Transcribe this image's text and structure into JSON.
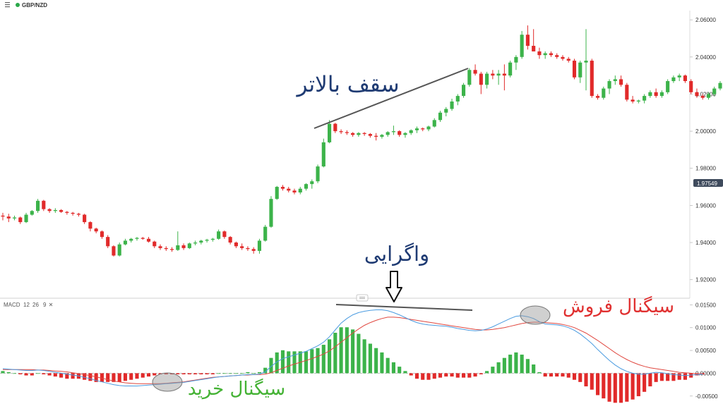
{
  "header": {
    "menu_icon": "menu-icon",
    "symbol": "GBP/NZD",
    "status_color": "#2aa84a"
  },
  "current_price": "1.97549",
  "macd": {
    "label": "MACD",
    "fast": "12",
    "slow": "26",
    "signal": "9",
    "close_icon": "close-icon"
  },
  "annotations": {
    "higher_high": "سقف بالاتر",
    "divergence": "واگرایی",
    "sell_signal": "سیگنال فروش",
    "buy_signal": "سیگنال خرید"
  },
  "colors": {
    "up": "#3cb34a",
    "down": "#e12a2a",
    "macd_line": "#4a9be0",
    "signal_line": "#e0473f",
    "trend_line": "#444444",
    "text_blue": "#1f3b73",
    "text_red": "#e03030",
    "text_green": "#44b234"
  },
  "chart_data": [
    {
      "type": "candlestick",
      "symbol": "GBP/NZD",
      "ylim": [
        1.91,
        2.065
      ],
      "y_ticks": [
        "2.06000",
        "2.04000",
        "2.02000",
        "2.00000",
        "1.98000",
        "1.96000",
        "1.94000",
        "1.92000"
      ],
      "last_price": 1.97549,
      "ohlc": [
        [
          1.9545,
          1.956,
          1.952,
          1.954
        ],
        [
          1.954,
          1.9555,
          1.951,
          1.953
        ],
        [
          1.953,
          1.9545,
          1.952,
          1.9535
        ],
        [
          1.9535,
          1.954,
          1.95,
          1.951
        ],
        [
          1.951,
          1.956,
          1.9505,
          1.955
        ],
        [
          1.955,
          1.9575,
          1.9545,
          1.957
        ],
        [
          1.957,
          1.9635,
          1.956,
          1.9625
        ],
        [
          1.9625,
          1.963,
          1.957,
          1.958
        ],
        [
          1.958,
          1.9585,
          1.956,
          1.957
        ],
        [
          1.957,
          1.9585,
          1.956,
          1.9575
        ],
        [
          1.9575,
          1.958,
          1.956,
          1.9565
        ],
        [
          1.9565,
          1.957,
          1.955,
          1.956
        ],
        [
          1.956,
          1.9565,
          1.9545,
          1.9555
        ],
        [
          1.9555,
          1.956,
          1.954,
          1.955
        ],
        [
          1.955,
          1.9555,
          1.95,
          1.951
        ],
        [
          1.951,
          1.9515,
          1.946,
          1.9475
        ],
        [
          1.9475,
          1.948,
          1.945,
          1.946
        ],
        [
          1.946,
          1.9465,
          1.942,
          1.943
        ],
        [
          1.943,
          1.944,
          1.937,
          1.938
        ],
        [
          1.938,
          1.9385,
          1.9325,
          1.933
        ],
        [
          1.933,
          1.94,
          1.9325,
          1.939
        ],
        [
          1.939,
          1.942,
          1.9385,
          1.941
        ],
        [
          1.941,
          1.9425,
          1.94,
          1.942
        ],
        [
          1.942,
          1.943,
          1.941,
          1.9425
        ],
        [
          1.9425,
          1.943,
          1.9415,
          1.942
        ],
        [
          1.942,
          1.943,
          1.94,
          1.9405
        ],
        [
          1.9405,
          1.941,
          1.937,
          1.938
        ],
        [
          1.938,
          1.939,
          1.936,
          1.937
        ],
        [
          1.937,
          1.938,
          1.9355,
          1.9365
        ],
        [
          1.9365,
          1.9375,
          1.935,
          1.936
        ],
        [
          1.936,
          1.946,
          1.9355,
          1.9385
        ],
        [
          1.9385,
          1.9395,
          1.936,
          1.937
        ],
        [
          1.937,
          1.94,
          1.9365,
          1.9395
        ],
        [
          1.9395,
          1.941,
          1.9385,
          1.94
        ],
        [
          1.94,
          1.9415,
          1.939,
          1.941
        ],
        [
          1.941,
          1.942,
          1.94,
          1.9415
        ],
        [
          1.9415,
          1.9425,
          1.9405,
          1.942
        ],
        [
          1.942,
          1.947,
          1.9415,
          1.946
        ],
        [
          1.946,
          1.9465,
          1.942,
          1.943
        ],
        [
          1.943,
          1.9435,
          1.939,
          1.94
        ],
        [
          1.94,
          1.9405,
          1.937,
          1.938
        ],
        [
          1.938,
          1.9395,
          1.936,
          1.937
        ],
        [
          1.937,
          1.938,
          1.9355,
          1.9365
        ],
        [
          1.9365,
          1.9375,
          1.934,
          1.9355
        ],
        [
          1.9355,
          1.942,
          1.934,
          1.941
        ],
        [
          1.941,
          1.9495,
          1.9405,
          1.9485
        ],
        [
          1.9485,
          1.965,
          1.948,
          1.9635
        ],
        [
          1.9635,
          1.9705,
          1.963,
          1.97
        ],
        [
          1.97,
          1.971,
          1.968,
          1.969
        ],
        [
          1.969,
          1.97,
          1.967,
          1.968
        ],
        [
          1.968,
          1.969,
          1.966,
          1.967
        ],
        [
          1.967,
          1.97,
          1.966,
          1.969
        ],
        [
          1.969,
          1.972,
          1.968,
          1.9715
        ],
        [
          1.9715,
          1.974,
          1.969,
          1.973
        ],
        [
          1.973,
          1.982,
          1.972,
          1.981
        ],
        [
          1.981,
          1.996,
          1.9805,
          1.994
        ],
        [
          1.994,
          2.006,
          1.9935,
          2.004
        ],
        [
          2.004,
          2.0045,
          1.999,
          2.0
        ],
        [
          2.0,
          2.001,
          1.9985,
          1.9995
        ],
        [
          1.9995,
          2.0005,
          1.998,
          1.999
        ],
        [
          1.999,
          1.9995,
          1.997,
          1.998
        ],
        [
          1.998,
          1.9995,
          1.997,
          1.999
        ],
        [
          1.999,
          1.9995,
          1.9975,
          1.9985
        ],
        [
          1.9985,
          1.999,
          1.9965,
          1.9975
        ],
        [
          1.9975,
          1.999,
          1.995,
          1.997
        ],
        [
          1.997,
          1.9985,
          1.996,
          1.998
        ],
        [
          1.998,
          2.0,
          1.997,
          1.9995
        ],
        [
          1.9995,
          2.003,
          1.998,
          2.0
        ],
        [
          2.0,
          2.0005,
          1.997,
          1.998
        ],
        [
          1.998,
          1.9995,
          1.9965,
          1.999
        ],
        [
          1.999,
          2.001,
          1.998,
          2.0005
        ],
        [
          2.0005,
          2.0025,
          1.999,
          2.0015
        ],
        [
          2.0015,
          2.002,
          2.0,
          2.001
        ],
        [
          2.001,
          2.003,
          2.0,
          2.0025
        ],
        [
          2.0025,
          2.007,
          2.002,
          2.006
        ],
        [
          2.006,
          2.011,
          2.005,
          2.01
        ],
        [
          2.01,
          2.013,
          2.008,
          2.012
        ],
        [
          2.012,
          2.0175,
          2.011,
          2.016
        ],
        [
          2.016,
          2.02,
          2.014,
          2.019
        ],
        [
          2.019,
          2.026,
          2.018,
          2.025
        ],
        [
          2.025,
          2.034,
          2.024,
          2.033
        ],
        [
          2.033,
          2.036,
          2.03,
          2.031
        ],
        [
          2.031,
          2.032,
          2.02,
          2.025
        ],
        [
          2.025,
          2.032,
          2.023,
          2.031
        ],
        [
          2.031,
          2.033,
          2.028,
          2.03
        ],
        [
          2.03,
          2.033,
          2.025,
          2.031
        ],
        [
          2.031,
          2.036,
          2.022,
          2.03
        ],
        [
          2.03,
          2.038,
          2.029,
          2.037
        ],
        [
          2.037,
          2.041,
          2.033,
          2.04
        ],
        [
          2.04,
          2.054,
          2.039,
          2.052
        ],
        [
          2.052,
          2.057,
          2.044,
          2.046
        ],
        [
          2.046,
          2.055,
          2.043,
          2.043
        ],
        [
          2.043,
          2.045,
          2.039,
          2.041
        ],
        [
          2.041,
          2.043,
          2.039,
          2.042
        ],
        [
          2.042,
          2.043,
          2.04,
          2.041
        ],
        [
          2.041,
          2.042,
          2.039,
          2.04
        ],
        [
          2.04,
          2.041,
          2.038,
          2.039
        ],
        [
          2.039,
          2.04,
          2.037,
          2.038
        ],
        [
          2.038,
          2.039,
          2.028,
          2.029
        ],
        [
          2.029,
          2.038,
          2.026,
          2.037
        ],
        [
          2.037,
          2.055,
          2.022,
          2.038
        ],
        [
          2.038,
          2.039,
          2.018,
          2.019
        ],
        [
          2.019,
          2.02,
          2.017,
          2.018
        ],
        [
          2.018,
          2.024,
          2.017,
          2.023
        ],
        [
          2.023,
          2.028,
          2.02,
          2.027
        ],
        [
          2.027,
          2.03,
          2.025,
          2.028
        ],
        [
          2.028,
          2.03,
          2.024,
          2.025
        ],
        [
          2.025,
          2.026,
          2.016,
          2.017
        ],
        [
          2.017,
          2.019,
          2.015,
          2.016
        ],
        [
          2.016,
          2.017,
          2.015,
          2.0165
        ],
        [
          2.0165,
          2.02,
          2.015,
          2.019
        ],
        [
          2.019,
          2.022,
          2.018,
          2.021
        ],
        [
          2.021,
          2.023,
          2.018,
          2.019
        ],
        [
          2.019,
          2.022,
          2.018,
          2.021
        ],
        [
          2.021,
          2.028,
          2.02,
          2.027
        ],
        [
          2.027,
          2.03,
          2.026,
          2.029
        ],
        [
          2.029,
          2.031,
          2.027,
          2.03
        ],
        [
          2.03,
          2.0305,
          2.026,
          2.027
        ],
        [
          2.027,
          2.028,
          2.02,
          2.021
        ],
        [
          2.021,
          2.023,
          2.018,
          2.019
        ],
        [
          2.019,
          2.02,
          2.017,
          2.018
        ],
        [
          2.018,
          2.021,
          2.017,
          2.02
        ],
        [
          2.02,
          2.024,
          2.019,
          2.023
        ],
        [
          2.023,
          2.027,
          2.022,
          2.026
        ]
      ]
    },
    {
      "type": "macd",
      "label": "MACD 12 26 9",
      "ylim": [
        -0.0072,
        0.0163
      ],
      "y_ticks": [
        "0.01500",
        "0.01000",
        "0.00500",
        "0.00000",
        "-0.00500"
      ],
      "macd_line": [
        0.001,
        0.0009,
        0.0008,
        0.0007,
        0.0006,
        0.0006,
        0.0007,
        0.0006,
        0.0004,
        0.0002,
        0.0,
        -0.0002,
        -0.0004,
        -0.0006,
        -0.0009,
        -0.0012,
        -0.0016,
        -0.0019,
        -0.0022,
        -0.0025,
        -0.0027,
        -0.0028,
        -0.0028,
        -0.0028,
        -0.0027,
        -0.0026,
        -0.0025,
        -0.0024,
        -0.0023,
        -0.0022,
        -0.0021,
        -0.002,
        -0.0018,
        -0.0016,
        -0.0014,
        -0.0012,
        -0.001,
        -0.0008,
        -0.0007,
        -0.0006,
        -0.0005,
        -0.0004,
        -0.0003,
        -0.0003,
        -0.0002,
        0.0003,
        0.0015,
        0.0025,
        0.0032,
        0.0036,
        0.004,
        0.0044,
        0.0048,
        0.0054,
        0.006,
        0.0068,
        0.008,
        0.0095,
        0.011,
        0.012,
        0.0128,
        0.0133,
        0.0136,
        0.0138,
        0.0139,
        0.0139,
        0.0137,
        0.0133,
        0.0128,
        0.0122,
        0.0116,
        0.0111,
        0.0108,
        0.0106,
        0.0105,
        0.0104,
        0.0103,
        0.0101,
        0.0098,
        0.0096,
        0.0094,
        0.0093,
        0.0094,
        0.0097,
        0.0102,
        0.0108,
        0.0114,
        0.012,
        0.0125,
        0.0126,
        0.0124,
        0.012,
        0.0113,
        0.0108,
        0.0107,
        0.0106,
        0.0104,
        0.01,
        0.0094,
        0.0086,
        0.0076,
        0.0065,
        0.0052,
        0.004,
        0.0028,
        0.0018,
        0.001,
        0.0004,
        0.0,
        -0.0002,
        -0.0002,
        0.0,
        0.0002,
        0.0001,
        -0.0001,
        -0.0003,
        -0.0004,
        -0.0005,
        -0.0004,
        -0.0003,
        -0.0002
      ],
      "signal_line": [
        0.0008,
        0.0008,
        0.0008,
        0.0008,
        0.0008,
        0.0008,
        0.0007,
        0.0007,
        0.0006,
        0.0005,
        0.0004,
        0.0003,
        0.0001,
        -0.0001,
        -0.0003,
        -0.0005,
        -0.0008,
        -0.0011,
        -0.0014,
        -0.0017,
        -0.0019,
        -0.0021,
        -0.0022,
        -0.0023,
        -0.0023,
        -0.0023,
        -0.0023,
        -0.0023,
        -0.0022,
        -0.0021,
        -0.002,
        -0.0019,
        -0.0017,
        -0.0015,
        -0.0013,
        -0.0011,
        -0.0009,
        -0.0008,
        -0.0007,
        -0.0006,
        -0.0005,
        -0.0004,
        -0.0004,
        -0.0003,
        -0.0003,
        -0.0002,
        0.0001,
        0.0006,
        0.0011,
        0.0016,
        0.002,
        0.0024,
        0.0028,
        0.0032,
        0.0037,
        0.0042,
        0.0049,
        0.0058,
        0.0068,
        0.0078,
        0.0088,
        0.0097,
        0.0105,
        0.0111,
        0.0116,
        0.012,
        0.0123,
        0.0123,
        0.0122,
        0.012,
        0.0118,
        0.0116,
        0.0114,
        0.0112,
        0.011,
        0.0108,
        0.0106,
        0.0104,
        0.0102,
        0.01,
        0.0098,
        0.0096,
        0.0095,
        0.0095,
        0.0096,
        0.0098,
        0.01,
        0.0103,
        0.0106,
        0.0109,
        0.0111,
        0.0112,
        0.0112,
        0.0111,
        0.011,
        0.0109,
        0.0107,
        0.0104,
        0.01,
        0.0094,
        0.0088,
        0.008,
        0.0072,
        0.0063,
        0.0054,
        0.0045,
        0.0037,
        0.003,
        0.0024,
        0.0019,
        0.0015,
        0.0012,
        0.001,
        0.0008,
        0.0006,
        0.0004,
        0.0002,
        0.0001,
        0.0,
        -0.0001,
        -0.0001
      ]
    }
  ]
}
